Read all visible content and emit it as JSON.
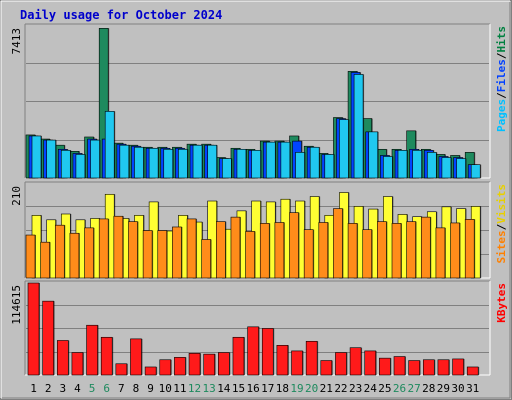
{
  "chart_data": {
    "type": "bar",
    "title": "Daily usage for October 2024",
    "days": [
      "1",
      "2",
      "3",
      "4",
      "5",
      "6",
      "7",
      "8",
      "9",
      "10",
      "11",
      "12",
      "13",
      "14",
      "15",
      "16",
      "17",
      "18",
      "19",
      "20",
      "21",
      "22",
      "23",
      "24",
      "25",
      "26",
      "27",
      "28",
      "29",
      "30",
      "31"
    ],
    "weekend_days": [
      "5",
      "6",
      "12",
      "13",
      "19",
      "20",
      "26",
      "27"
    ],
    "panels": [
      {
        "id": "pages-files-hits",
        "scale_label": "7413",
        "ymax": 7413,
        "legend": [
          {
            "text": "Pages",
            "color": "#00c0ff"
          },
          {
            "text": "/",
            "color": "#000000"
          },
          {
            "text": "Files",
            "color": "#0040ff"
          },
          {
            "text": "/",
            "color": "#000000"
          },
          {
            "text": "Hits",
            "color": "#008040"
          }
        ],
        "series": [
          {
            "name": "Hits",
            "color": "#1e8a5e",
            "values": [
              2100,
              1900,
              1600,
              1300,
              2000,
              7300,
              1700,
              1600,
              1500,
              1500,
              1500,
              1650,
              1650,
              1000,
              1450,
              1400,
              1800,
              1800,
              2050,
              1550,
              1200,
              2950,
              5200,
              2900,
              1400,
              1400,
              2300,
              1400,
              1150,
              1100,
              1250
            ]
          },
          {
            "name": "Files",
            "color": "#0044ff",
            "values": [
              2050,
              1850,
              1400,
              1200,
              1900,
              1900,
              1650,
              1550,
              1450,
              1450,
              1450,
              1600,
              1600,
              950,
              1400,
              1350,
              1750,
              1750,
              1800,
              1500,
              1150,
              2900,
              5150,
              2250,
              1100,
              1350,
              1400,
              1350,
              1050,
              1000,
              650
            ]
          },
          {
            "name": "Pages",
            "color": "#20c8f0",
            "values": [
              2050,
              1850,
              1350,
              1150,
              1850,
              3250,
              1600,
              1500,
              1450,
              1400,
              1400,
              1600,
              1600,
              950,
              1400,
              1350,
              1750,
              1750,
              1250,
              1500,
              1150,
              2850,
              5050,
              2250,
              1050,
              1350,
              1350,
              1250,
              1000,
              950,
              650
            ]
          }
        ]
      },
      {
        "id": "sites-visits",
        "scale_label": "210",
        "ymax": 210,
        "legend": [
          {
            "text": "Sites",
            "color": "#ff8000"
          },
          {
            "text": "/",
            "color": "#000000"
          },
          {
            "text": "Visits",
            "color": "#e8d000"
          }
        ],
        "series": [
          {
            "name": "Visits",
            "color": "#ffff33",
            "values": [
              140,
              130,
              143,
              130,
              133,
              187,
              133,
              140,
              170,
              105,
              140,
              125,
              172,
              109,
              150,
              172,
              170,
              176,
              172,
              182,
              140,
              191,
              160,
              154,
              182,
              142,
              137,
              148,
              159,
              155,
              160
            ]
          },
          {
            "name": "Sites",
            "color": "#ff8c1a",
            "values": [
              96,
              80,
              118,
              100,
              112,
              132,
              138,
              126,
              106,
              106,
              114,
              132,
              86,
              126,
              136,
              104,
              122,
              124,
              146,
              108,
              124,
              155,
              122,
              108,
              126,
              122,
              126,
              136,
              112,
              123,
              131
            ]
          }
        ]
      },
      {
        "id": "kbytes",
        "scale_label": "114615",
        "ymax": 114615,
        "legend": [
          {
            "text": "KBytes",
            "color": "#ff0000"
          }
        ],
        "series": [
          {
            "name": "KBytes",
            "color": "#ff1a1a",
            "values": [
              114600,
              92000,
              43000,
              28000,
              62000,
              47000,
              14000,
              45000,
              10000,
              19000,
              22000,
              27000,
              26000,
              28000,
              47000,
              60000,
              58000,
              37000,
              30000,
              42000,
              18000,
              28000,
              34000,
              30000,
              21000,
              23000,
              18000,
              19000,
              19000,
              20000,
              10000
            ]
          }
        ]
      }
    ]
  }
}
